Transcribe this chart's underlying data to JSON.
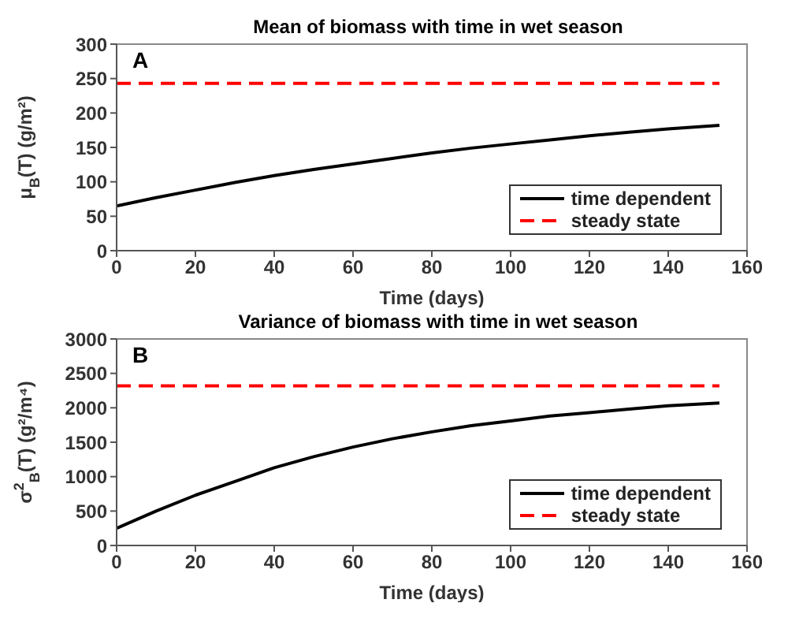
{
  "chart_data": [
    {
      "type": "line",
      "title": "Mean of biomass with time in wet season",
      "xlabel": "Time (days)",
      "ylabel": "μ$_{B}$(T) (g/m²)",
      "annotations": [
        "A"
      ],
      "xlim": [
        0,
        160
      ],
      "xticks": [
        0,
        20,
        40,
        60,
        80,
        100,
        120,
        140,
        160
      ],
      "ylim": [
        0,
        300
      ],
      "yticks": [
        0,
        50,
        100,
        150,
        200,
        250,
        300
      ],
      "legend": "bottom right",
      "marker": "none",
      "series": [
        {
          "name": "time dependent",
          "color": "#000000",
          "line_style": "solid",
          "x": [
            0,
            10,
            20,
            30,
            40,
            50,
            60,
            70,
            80,
            90,
            100,
            110,
            120,
            130,
            140,
            153
          ],
          "values": [
            65,
            77,
            88,
            99,
            109,
            118,
            126,
            134,
            142,
            149,
            155,
            161,
            167,
            172,
            177,
            182
          ]
        },
        {
          "name": "steady state",
          "color": "#ff0000",
          "line_style": "dashed",
          "x": [
            0,
            153
          ],
          "values": [
            243,
            243
          ]
        }
      ]
    },
    {
      "type": "line",
      "title": "Variance of biomass with time in wet season",
      "xlabel": "Time (days)",
      "ylabel": "σ$^{2}$$_{B}$(T) (g²/m⁴)",
      "annotations": [
        "B"
      ],
      "xlim": [
        0,
        160
      ],
      "xticks": [
        0,
        20,
        40,
        60,
        80,
        100,
        120,
        140,
        160
      ],
      "ylim": [
        0,
        3000
      ],
      "yticks": [
        0,
        500,
        1000,
        1500,
        2000,
        2500,
        3000
      ],
      "legend": "bottom right",
      "marker": "none",
      "series": [
        {
          "name": "time dependent",
          "color": "#000000",
          "line_style": "solid",
          "x": [
            0,
            10,
            20,
            30,
            40,
            50,
            60,
            70,
            80,
            90,
            100,
            110,
            120,
            130,
            140,
            153
          ],
          "values": [
            250,
            500,
            730,
            930,
            1130,
            1290,
            1430,
            1550,
            1650,
            1740,
            1810,
            1880,
            1930,
            1980,
            2030,
            2070
          ]
        },
        {
          "name": "steady state",
          "color": "#ff0000",
          "line_style": "dashed",
          "x": [
            0,
            153
          ],
          "values": [
            2320,
            2320
          ]
        }
      ]
    }
  ]
}
